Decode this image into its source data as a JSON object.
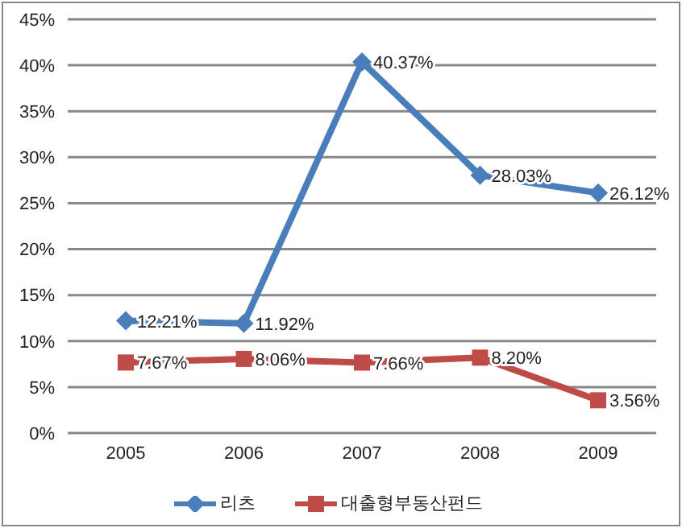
{
  "chart_data": {
    "type": "line",
    "categories": [
      "2005",
      "2006",
      "2007",
      "2008",
      "2009"
    ],
    "series": [
      {
        "name": "리츠",
        "color": "#4a7ebb",
        "marker": "diamond",
        "values": [
          12.21,
          11.92,
          40.37,
          28.03,
          26.12
        ],
        "value_labels": [
          "12.21%",
          "11.92%",
          "40.37%",
          "28.03%",
          "26.12%"
        ]
      },
      {
        "name": "대출형부동산펀드",
        "color": "#be4b48",
        "marker": "square",
        "values": [
          7.67,
          8.06,
          7.66,
          8.2,
          3.56
        ],
        "value_labels": [
          "7.67%",
          "8.06%",
          "7.66%",
          "8.20%",
          "3.56%"
        ]
      }
    ],
    "ylim": [
      0,
      45
    ],
    "yticks": [
      {
        "value": 0,
        "label": "0%"
      },
      {
        "value": 5,
        "label": "5%"
      },
      {
        "value": 10,
        "label": "10%"
      },
      {
        "value": 15,
        "label": "15%"
      },
      {
        "value": 20,
        "label": "20%"
      },
      {
        "value": 25,
        "label": "25%"
      },
      {
        "value": 30,
        "label": "30%"
      },
      {
        "value": 35,
        "label": "35%"
      },
      {
        "value": 40,
        "label": "40%"
      },
      {
        "value": 45,
        "label": "45%"
      }
    ],
    "grid": "y",
    "legend": "bottom",
    "line_style": "solid"
  }
}
